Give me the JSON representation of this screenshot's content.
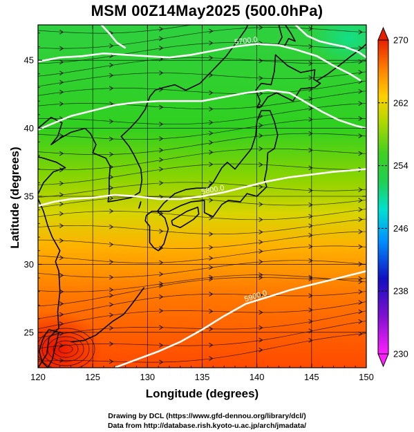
{
  "title": "MSM 00Z14May2025 (500.0hPa)",
  "xlabel": "Longitude (degrees)",
  "ylabel": "Latitude  (degrees)",
  "credits": [
    "Drawing by DCL (https://www.gfd-dennou.org/library/dcl/)",
    "Data from http://database.rish.kyoto-u.ac.jp/arch/jmadata/"
  ],
  "map": {
    "lon_range": [
      120,
      150
    ],
    "lat_range": [
      22.4,
      47.6
    ],
    "lon_ticks": [
      120,
      125,
      130,
      135,
      140,
      145,
      150
    ],
    "lat_ticks": [
      25,
      30,
      35,
      40,
      45
    ],
    "projection": "equirectangular",
    "grid": true
  },
  "colorbar": {
    "label_values": [
      230,
      238,
      246,
      254,
      262,
      270
    ],
    "min": 230,
    "max": 270,
    "palette": [
      "#ff10ff",
      "#1010c0",
      "#00b8ff",
      "#00e0a0",
      "#20d020",
      "#a8d800",
      "#ffd000",
      "#ff8a00",
      "#e82000"
    ]
  },
  "contours": [
    {
      "label": "5700.0",
      "points": [
        [
          120.0,
          44.9
        ],
        [
          122.0,
          45.2
        ],
        [
          124.0,
          45.3
        ],
        [
          126.0,
          45.5
        ],
        [
          128.0,
          45.4
        ],
        [
          130.0,
          45.3
        ],
        [
          132.0,
          45.2
        ],
        [
          134.0,
          45.4
        ],
        [
          136.0,
          45.7
        ],
        [
          138.0,
          46.0
        ],
        [
          140.0,
          46.2
        ],
        [
          142.0,
          46.1
        ],
        [
          143.5,
          45.8
        ],
        [
          145.5,
          45.3
        ],
        [
          147.0,
          44.6
        ],
        [
          148.5,
          44.0
        ],
        [
          149.5,
          43.5
        ]
      ]
    },
    {
      "label": "",
      "points": [
        [
          120.0,
          39.9
        ],
        [
          121.5,
          40.4
        ],
        [
          123.0,
          40.9
        ],
        [
          125.0,
          41.3
        ],
        [
          127.0,
          41.7
        ],
        [
          129.0,
          41.9
        ],
        [
          131.0,
          42.0
        ],
        [
          133.0,
          42.0
        ],
        [
          135.0,
          42.0
        ],
        [
          137.0,
          42.3
        ],
        [
          139.0,
          42.6
        ],
        [
          141.0,
          42.8
        ],
        [
          143.0,
          42.6
        ],
        [
          144.5,
          41.9
        ],
        [
          146.0,
          41.2
        ],
        [
          147.5,
          40.6
        ],
        [
          149.0,
          40.2
        ],
        [
          150.0,
          40.0
        ]
      ]
    },
    {
      "label": "5800.0",
      "points": [
        [
          120.0,
          34.3
        ],
        [
          121.5,
          34.6
        ],
        [
          123.0,
          34.8
        ],
        [
          125.0,
          34.9
        ],
        [
          127.0,
          35.1
        ],
        [
          129.0,
          35.0
        ],
        [
          131.0,
          34.8
        ],
        [
          133.0,
          34.8
        ],
        [
          135.0,
          35.0
        ],
        [
          137.0,
          35.3
        ],
        [
          139.0,
          35.7
        ],
        [
          141.0,
          36.1
        ],
        [
          143.0,
          36.4
        ],
        [
          145.0,
          36.6
        ],
        [
          147.0,
          36.8
        ],
        [
          150.0,
          37.0
        ]
      ]
    },
    {
      "label": "5900.0",
      "points": [
        [
          127.0,
          22.4
        ],
        [
          129.0,
          23.0
        ],
        [
          131.0,
          23.6
        ],
        [
          133.0,
          24.3
        ],
        [
          135.0,
          25.2
        ],
        [
          137.0,
          26.2
        ],
        [
          139.0,
          27.1
        ],
        [
          141.0,
          27.6
        ],
        [
          143.0,
          28.1
        ],
        [
          145.0,
          28.5
        ],
        [
          147.0,
          28.9
        ],
        [
          150.0,
          29.5
        ]
      ]
    },
    {
      "label": "",
      "points": [
        [
          125.0,
          48.0
        ],
        [
          125.8,
          47.6
        ],
        [
          126.6,
          46.9
        ],
        [
          127.2,
          46.3
        ],
        [
          128.0,
          45.9
        ]
      ]
    },
    {
      "label": "",
      "points": [
        [
          143.0,
          48.0
        ],
        [
          143.8,
          47.4
        ],
        [
          144.6,
          46.8
        ],
        [
          145.7,
          46.4
        ],
        [
          146.8,
          46.2
        ],
        [
          148.0,
          46.0
        ],
        [
          149.3,
          45.6
        ],
        [
          150.0,
          45.2
        ]
      ]
    }
  ],
  "coastlines": [
    {
      "name": "honshu",
      "points": [
        [
          130.9,
          33.9
        ],
        [
          131.5,
          34.5
        ],
        [
          132.5,
          35.2
        ],
        [
          133.5,
          35.5
        ],
        [
          134.5,
          35.6
        ],
        [
          135.5,
          35.6
        ],
        [
          136.0,
          36.0
        ],
        [
          136.8,
          37.1
        ],
        [
          137.3,
          37.5
        ],
        [
          138.0,
          37.0
        ],
        [
          138.8,
          37.8
        ],
        [
          139.5,
          38.5
        ],
        [
          139.9,
          39.5
        ],
        [
          140.0,
          40.5
        ],
        [
          140.4,
          41.3
        ],
        [
          141.2,
          41.3
        ],
        [
          141.6,
          40.5
        ],
        [
          141.9,
          39.5
        ],
        [
          141.6,
          38.5
        ],
        [
          141.0,
          38.2
        ],
        [
          140.9,
          37.0
        ],
        [
          140.7,
          36.2
        ],
        [
          140.9,
          35.7
        ],
        [
          140.0,
          35.0
        ],
        [
          139.1,
          35.2
        ],
        [
          138.5,
          34.6
        ],
        [
          137.4,
          34.7
        ],
        [
          136.8,
          34.4
        ],
        [
          136.0,
          33.5
        ],
        [
          135.2,
          33.8
        ],
        [
          135.2,
          34.7
        ],
        [
          134.0,
          34.6
        ],
        [
          133.0,
          34.3
        ],
        [
          132.0,
          33.9
        ],
        [
          131.0,
          33.9
        ],
        [
          130.9,
          33.9
        ]
      ]
    },
    {
      "name": "kyushu",
      "points": [
        [
          130.9,
          33.9
        ],
        [
          131.6,
          33.4
        ],
        [
          131.9,
          32.6
        ],
        [
          131.5,
          31.5
        ],
        [
          131.0,
          31.0
        ],
        [
          130.6,
          31.2
        ],
        [
          130.2,
          31.6
        ],
        [
          130.2,
          32.2
        ],
        [
          130.2,
          32.8
        ],
        [
          129.8,
          33.2
        ],
        [
          129.9,
          33.6
        ],
        [
          130.4,
          33.9
        ],
        [
          130.9,
          33.9
        ]
      ]
    },
    {
      "name": "shikoku",
      "points": [
        [
          132.2,
          33.2
        ],
        [
          132.8,
          33.5
        ],
        [
          133.6,
          33.9
        ],
        [
          134.6,
          34.2
        ],
        [
          134.7,
          33.7
        ],
        [
          134.2,
          33.3
        ],
        [
          133.0,
          32.7
        ],
        [
          132.3,
          32.9
        ],
        [
          132.2,
          33.2
        ]
      ]
    },
    {
      "name": "hokkaido",
      "points": [
        [
          140.0,
          41.5
        ],
        [
          140.3,
          42.0
        ],
        [
          139.9,
          42.8
        ],
        [
          140.4,
          43.3
        ],
        [
          141.3,
          43.2
        ],
        [
          141.6,
          44.2
        ],
        [
          141.7,
          45.4
        ],
        [
          142.8,
          44.6
        ],
        [
          144.0,
          44.1
        ],
        [
          145.3,
          44.3
        ],
        [
          145.2,
          43.6
        ],
        [
          145.8,
          43.3
        ],
        [
          145.3,
          43.0
        ],
        [
          144.0,
          42.9
        ],
        [
          143.3,
          42.0
        ],
        [
          141.8,
          42.6
        ],
        [
          141.0,
          42.3
        ],
        [
          140.4,
          41.6
        ],
        [
          140.0,
          41.5
        ]
      ]
    },
    {
      "name": "sakhalin",
      "points": [
        [
          141.9,
          46.1
        ],
        [
          142.3,
          46.7
        ],
        [
          142.0,
          47.6
        ],
        [
          142.6,
          47.6
        ],
        [
          143.1,
          47.0
        ],
        [
          143.5,
          46.4
        ],
        [
          142.9,
          46.6
        ],
        [
          142.5,
          46.0
        ],
        [
          141.9,
          46.1
        ]
      ]
    },
    {
      "name": "korea",
      "points": [
        [
          124.3,
          40.0
        ],
        [
          124.8,
          39.6
        ],
        [
          125.3,
          38.8
        ],
        [
          125.0,
          38.2
        ],
        [
          126.2,
          37.8
        ],
        [
          126.6,
          37.2
        ],
        [
          126.5,
          36.3
        ],
        [
          126.5,
          35.2
        ],
        [
          126.4,
          34.6
        ],
        [
          127.2,
          34.7
        ],
        [
          128.5,
          34.9
        ],
        [
          129.3,
          35.3
        ],
        [
          129.5,
          36.2
        ],
        [
          129.4,
          37.0
        ],
        [
          128.8,
          38.0
        ],
        [
          128.3,
          38.7
        ],
        [
          127.6,
          39.4
        ],
        [
          128.4,
          40.0
        ],
        [
          129.2,
          40.7
        ],
        [
          129.8,
          41.4
        ],
        [
          130.2,
          42.3
        ],
        [
          130.7,
          42.8
        ]
      ]
    },
    {
      "name": "china-coast",
      "points": [
        [
          120.0,
          22.4
        ],
        [
          120.8,
          23.4
        ],
        [
          121.0,
          24.6
        ],
        [
          121.9,
          25.3
        ],
        [
          121.8,
          26.5
        ],
        [
          122.0,
          28.0
        ],
        [
          121.9,
          29.5
        ],
        [
          121.6,
          30.2
        ],
        [
          122.0,
          31.0
        ],
        [
          121.3,
          32.0
        ],
        [
          120.9,
          32.8
        ],
        [
          120.5,
          33.9
        ],
        [
          119.9,
          35.0
        ],
        [
          120.5,
          36.0
        ],
        [
          121.4,
          36.8
        ],
        [
          122.5,
          37.1
        ],
        [
          121.7,
          37.5
        ],
        [
          120.5,
          37.8
        ],
        [
          120.0,
          37.9
        ]
      ]
    },
    {
      "name": "liaodong",
      "points": [
        [
          120.0,
          40.0
        ],
        [
          121.2,
          40.8
        ],
        [
          122.2,
          40.4
        ],
        [
          121.8,
          39.4
        ],
        [
          121.2,
          38.8
        ],
        [
          122.1,
          39.3
        ],
        [
          123.0,
          39.7
        ],
        [
          124.3,
          40.0
        ]
      ]
    },
    {
      "name": "taiwan",
      "points": [
        [
          121.0,
          25.2
        ],
        [
          121.9,
          25.0
        ],
        [
          121.6,
          24.0
        ],
        [
          121.3,
          23.0
        ],
        [
          120.9,
          22.4
        ],
        [
          120.4,
          22.8
        ],
        [
          120.1,
          23.6
        ],
        [
          120.4,
          24.4
        ],
        [
          120.7,
          24.9
        ],
        [
          121.0,
          25.2
        ]
      ]
    },
    {
      "name": "russia-coast",
      "points": [
        [
          130.7,
          42.8
        ],
        [
          131.5,
          43.0
        ],
        [
          132.5,
          43.2
        ],
        [
          133.5,
          42.8
        ],
        [
          134.8,
          43.3
        ],
        [
          136.0,
          44.3
        ],
        [
          137.2,
          45.3
        ],
        [
          138.3,
          46.5
        ],
        [
          139.0,
          47.3
        ],
        [
          139.4,
          48.0
        ]
      ]
    },
    {
      "name": "kurils",
      "points": [
        [
          145.5,
          43.5
        ],
        [
          146.5,
          44.0
        ],
        [
          147.5,
          44.6
        ],
        [
          148.6,
          45.3
        ],
        [
          149.6,
          45.9
        ],
        [
          150.0,
          46.2
        ]
      ]
    },
    {
      "name": "ryukyus",
      "points": [
        [
          129.7,
          28.3
        ],
        [
          128.5,
          27.0
        ],
        [
          127.8,
          26.3
        ],
        [
          126.8,
          25.8
        ],
        [
          125.3,
          24.8
        ],
        [
          124.2,
          24.4
        ],
        [
          123.0,
          24.3
        ]
      ]
    },
    {
      "name": "tsushima",
      "points": [
        [
          129.2,
          34.1
        ],
        [
          129.4,
          34.6
        ],
        [
          129.3,
          34.3
        ],
        [
          129.2,
          34.1
        ]
      ]
    }
  ]
}
